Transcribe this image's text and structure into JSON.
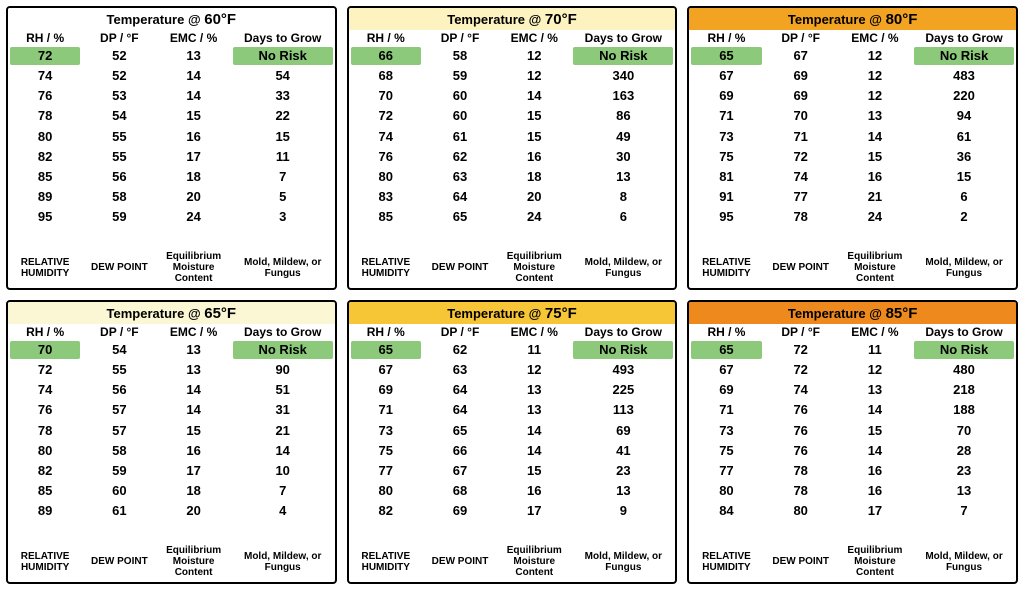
{
  "headers": [
    "RH / %",
    "DP / °F",
    "EMC / %",
    "Days to Grow"
  ],
  "footers": [
    "RELATIVE HUMIDITY",
    "DEW POINT",
    "Equilibrium Moisture Content",
    "Mold, Mildew, or Fungus"
  ],
  "title_prefix": "Temperature @ ",
  "no_risk_label": "No Risk",
  "highlight_color": "#8dc97b",
  "panels": [
    {
      "temp": "60°F",
      "title_bg": "#ffffff",
      "rows": [
        {
          "rh": "72",
          "dp": "52",
          "emc": "13",
          "days": "No Risk",
          "highlight": true
        },
        {
          "rh": "74",
          "dp": "52",
          "emc": "14",
          "days": "54"
        },
        {
          "rh": "76",
          "dp": "53",
          "emc": "14",
          "days": "33"
        },
        {
          "rh": "78",
          "dp": "54",
          "emc": "15",
          "days": "22"
        },
        {
          "rh": "80",
          "dp": "55",
          "emc": "16",
          "days": "15"
        },
        {
          "rh": "82",
          "dp": "55",
          "emc": "17",
          "days": "11"
        },
        {
          "rh": "85",
          "dp": "56",
          "emc": "18",
          "days": "7"
        },
        {
          "rh": "89",
          "dp": "58",
          "emc": "20",
          "days": "5"
        },
        {
          "rh": "95",
          "dp": "59",
          "emc": "24",
          "days": "3"
        }
      ]
    },
    {
      "temp": "70°F",
      "title_bg": "#fcf3c0",
      "rows": [
        {
          "rh": "66",
          "dp": "58",
          "emc": "12",
          "days": "No Risk",
          "highlight": true
        },
        {
          "rh": "68",
          "dp": "59",
          "emc": "12",
          "days": "340"
        },
        {
          "rh": "70",
          "dp": "60",
          "emc": "14",
          "days": "163"
        },
        {
          "rh": "72",
          "dp": "60",
          "emc": "15",
          "days": "86"
        },
        {
          "rh": "74",
          "dp": "61",
          "emc": "15",
          "days": "49"
        },
        {
          "rh": "76",
          "dp": "62",
          "emc": "16",
          "days": "30"
        },
        {
          "rh": "80",
          "dp": "63",
          "emc": "18",
          "days": "13"
        },
        {
          "rh": "83",
          "dp": "64",
          "emc": "20",
          "days": "8"
        },
        {
          "rh": "85",
          "dp": "65",
          "emc": "24",
          "days": "6"
        }
      ]
    },
    {
      "temp": "80°F",
      "title_bg": "#f2a321",
      "rows": [
        {
          "rh": "65",
          "dp": "67",
          "emc": "12",
          "days": "No Risk",
          "highlight": true
        },
        {
          "rh": "67",
          "dp": "69",
          "emc": "12",
          "days": "483"
        },
        {
          "rh": "69",
          "dp": "69",
          "emc": "12",
          "days": "220"
        },
        {
          "rh": "71",
          "dp": "70",
          "emc": "13",
          "days": "94"
        },
        {
          "rh": "73",
          "dp": "71",
          "emc": "14",
          "days": "61"
        },
        {
          "rh": "75",
          "dp": "72",
          "emc": "15",
          "days": "36"
        },
        {
          "rh": "81",
          "dp": "74",
          "emc": "16",
          "days": "15"
        },
        {
          "rh": "91",
          "dp": "77",
          "emc": "21",
          "days": "6"
        },
        {
          "rh": "95",
          "dp": "78",
          "emc": "24",
          "days": "2"
        }
      ]
    },
    {
      "temp": "65°F",
      "title_bg": "#fbf6d3",
      "rows": [
        {
          "rh": "70",
          "dp": "54",
          "emc": "13",
          "days": "No Risk",
          "highlight": true
        },
        {
          "rh": "72",
          "dp": "55",
          "emc": "13",
          "days": "90"
        },
        {
          "rh": "74",
          "dp": "56",
          "emc": "14",
          "days": "51"
        },
        {
          "rh": "76",
          "dp": "57",
          "emc": "14",
          "days": "31"
        },
        {
          "rh": "78",
          "dp": "57",
          "emc": "15",
          "days": "21"
        },
        {
          "rh": "80",
          "dp": "58",
          "emc": "16",
          "days": "14"
        },
        {
          "rh": "82",
          "dp": "59",
          "emc": "17",
          "days": "10"
        },
        {
          "rh": "85",
          "dp": "60",
          "emc": "18",
          "days": "7"
        },
        {
          "rh": "89",
          "dp": "61",
          "emc": "20",
          "days": "4"
        }
      ]
    },
    {
      "temp": "75°F",
      "title_bg": "#f7c637",
      "rows": [
        {
          "rh": "65",
          "dp": "62",
          "emc": "11",
          "days": "No Risk",
          "highlight": true
        },
        {
          "rh": "67",
          "dp": "63",
          "emc": "12",
          "days": "493"
        },
        {
          "rh": "69",
          "dp": "64",
          "emc": "13",
          "days": "225"
        },
        {
          "rh": "71",
          "dp": "64",
          "emc": "13",
          "days": "113"
        },
        {
          "rh": "73",
          "dp": "65",
          "emc": "14",
          "days": "69"
        },
        {
          "rh": "75",
          "dp": "66",
          "emc": "14",
          "days": "41"
        },
        {
          "rh": "77",
          "dp": "67",
          "emc": "15",
          "days": "23"
        },
        {
          "rh": "80",
          "dp": "68",
          "emc": "16",
          "days": "13"
        },
        {
          "rh": "82",
          "dp": "69",
          "emc": "17",
          "days": "9"
        }
      ]
    },
    {
      "temp": "85°F",
      "title_bg": "#ee8a1d",
      "rows": [
        {
          "rh": "65",
          "dp": "72",
          "emc": "11",
          "days": "No Risk",
          "highlight": true
        },
        {
          "rh": "67",
          "dp": "72",
          "emc": "12",
          "days": "480"
        },
        {
          "rh": "69",
          "dp": "74",
          "emc": "13",
          "days": "218"
        },
        {
          "rh": "71",
          "dp": "76",
          "emc": "14",
          "days": "188"
        },
        {
          "rh": "73",
          "dp": "76",
          "emc": "15",
          "days": "70"
        },
        {
          "rh": "75",
          "dp": "76",
          "emc": "14",
          "days": "28"
        },
        {
          "rh": "77",
          "dp": "78",
          "emc": "16",
          "days": "23"
        },
        {
          "rh": "80",
          "dp": "78",
          "emc": "16",
          "days": "13"
        },
        {
          "rh": "84",
          "dp": "80",
          "emc": "17",
          "days": "7"
        }
      ]
    }
  ]
}
